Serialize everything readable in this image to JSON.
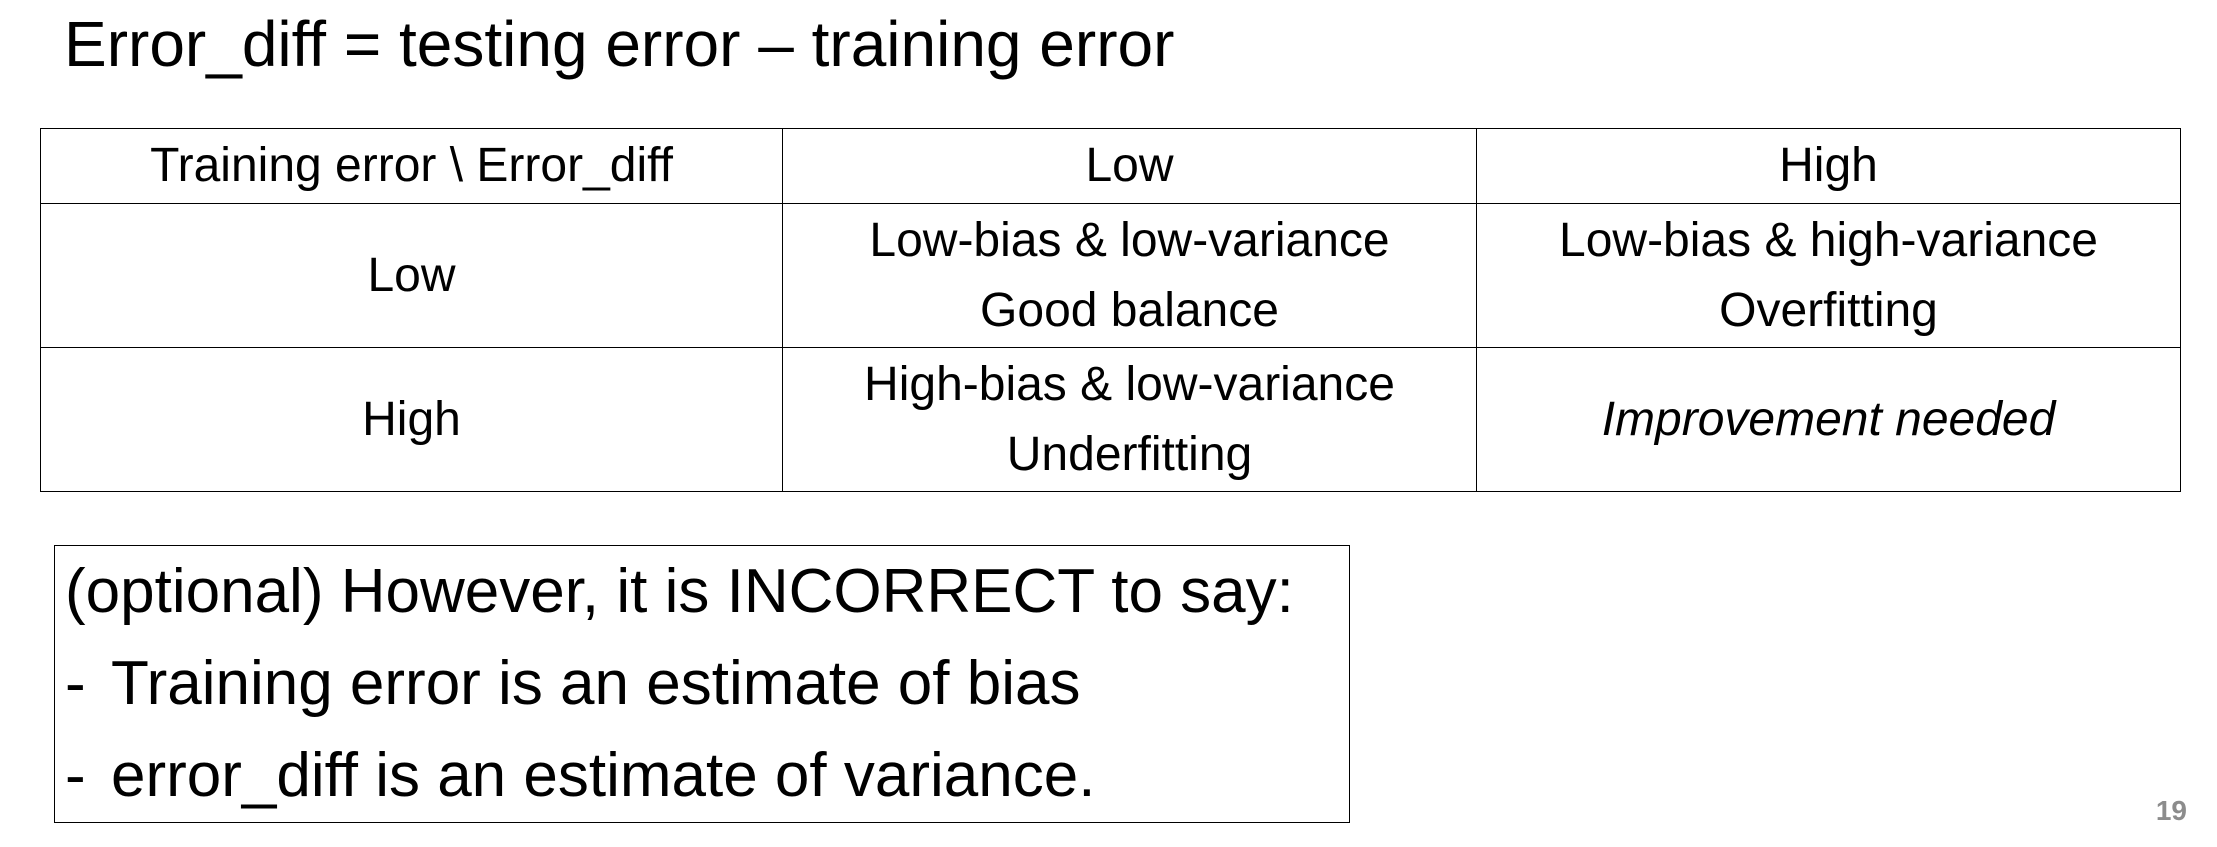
{
  "heading": "Error_diff = testing error – training error",
  "matrix": {
    "corner": "Training error \\ Error_diff",
    "col_low": "Low",
    "col_high": "High",
    "row_low": {
      "label": "Low",
      "low": [
        "Low-bias & low-variance",
        "Good balance"
      ],
      "high": [
        "Low-bias & high-variance",
        "Overfitting"
      ]
    },
    "row_high": {
      "label": "High",
      "low": [
        "High-bias & low-variance",
        "Underfitting"
      ],
      "high": "Improvement needed"
    }
  },
  "note": {
    "intro": "(optional) However, it is INCORRECT to say:",
    "bullet_marker": "-",
    "bullets": [
      "Training error is an estimate of bias",
      "error_diff is an estimate of variance."
    ]
  },
  "page_number": "19"
}
